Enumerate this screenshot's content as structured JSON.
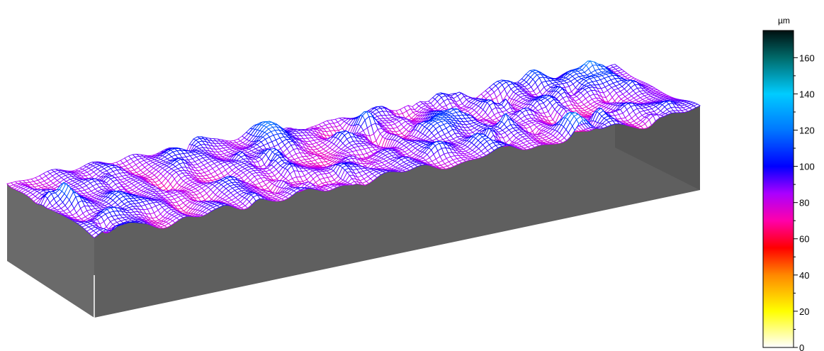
{
  "chart_data": {
    "type": "surface-3d",
    "title": "",
    "unit": "µm",
    "colorbar": {
      "unit": "µm",
      "min": 0,
      "max": 175,
      "ticks": [
        0,
        20,
        40,
        60,
        80,
        100,
        120,
        140,
        160
      ],
      "tick_labels": [
        "0",
        "20",
        "40",
        "60",
        "80",
        "100",
        "120",
        "140",
        "160"
      ],
      "color_stops": [
        {
          "value": 0,
          "color": "#ffffff"
        },
        {
          "value": 20,
          "color": "#ffff00"
        },
        {
          "value": 40,
          "color": "#ff8800"
        },
        {
          "value": 55,
          "color": "#ff0000"
        },
        {
          "value": 70,
          "color": "#ff00aa"
        },
        {
          "value": 85,
          "color": "#aa00ff"
        },
        {
          "value": 100,
          "color": "#0000ff"
        },
        {
          "value": 120,
          "color": "#0077ff"
        },
        {
          "value": 140,
          "color": "#00ccff"
        },
        {
          "value": 160,
          "color": "#006a6a"
        },
        {
          "value": 175,
          "color": "#001010"
        }
      ]
    },
    "surface": {
      "height_range": [
        40,
        140
      ],
      "dominant_range": [
        70,
        110
      ],
      "base_color": "#5f5f5f"
    }
  }
}
